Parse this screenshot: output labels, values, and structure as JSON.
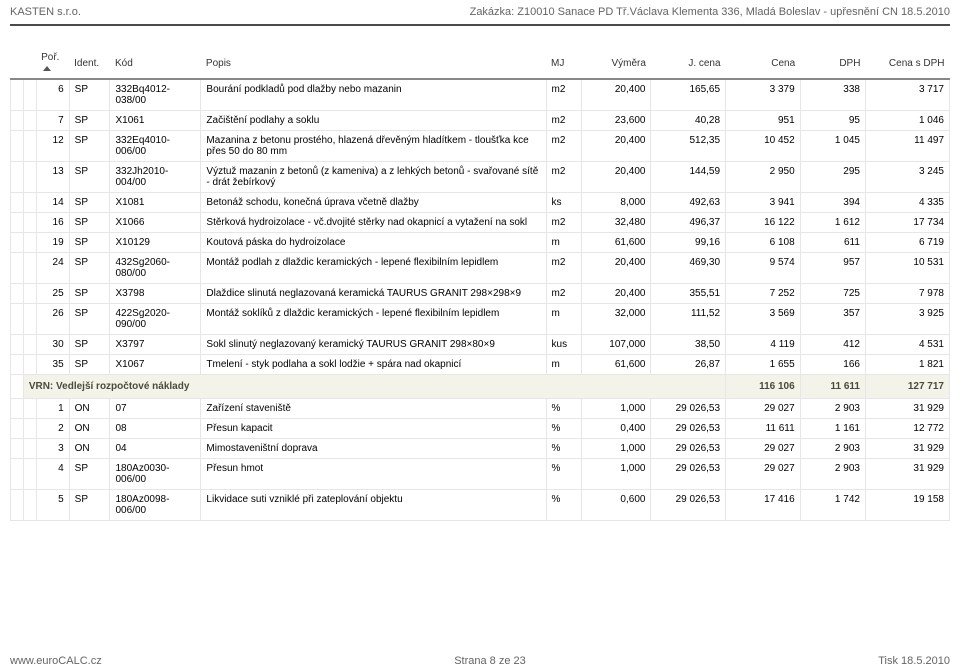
{
  "header": {
    "left": "KASTEN s.r.o.",
    "right": "Zakázka: Z10010 Sanace PD Tř.Václava Klementa 336, Mladá Boleslav - upřesnění CN 18.5.2010"
  },
  "columns": {
    "c1": "Poř.",
    "c2": "Ident.",
    "c3": "Kód",
    "c4": "Popis",
    "c5": "MJ",
    "c6": "Výměra",
    "c7": "J. cena",
    "c8": "Cena",
    "c9": "DPH",
    "c10": "Cena s DPH"
  },
  "rows": [
    {
      "n": "6",
      "ident": "SP",
      "kod": "332Bq4012-038/00",
      "popis": "Bourání podkladů pod dlažby nebo mazanin",
      "mj": "m2",
      "vymera": "20,400",
      "jcena": "165,65",
      "cena": "3 379",
      "dph": "338",
      "sdph": "3 717"
    },
    {
      "n": "7",
      "ident": "SP",
      "kod": "X1061",
      "popis": "Začištění podlahy a soklu",
      "mj": "m2",
      "vymera": "23,600",
      "jcena": "40,28",
      "cena": "951",
      "dph": "95",
      "sdph": "1 046"
    },
    {
      "n": "12",
      "ident": "SP",
      "kod": "332Eq4010-006/00",
      "popis": "Mazanina z betonu prostého, hlazená dřevěným hladítkem - tloušťka kce přes 50 do 80 mm",
      "mj": "m2",
      "vymera": "20,400",
      "jcena": "512,35",
      "cena": "10 452",
      "dph": "1 045",
      "sdph": "11 497"
    },
    {
      "n": "13",
      "ident": "SP",
      "kod": "332Jh2010-004/00",
      "popis": "Výztuž mazanin z betonů (z kameniva) a z lehkých betonů - svařované sítě - drát žebírkový",
      "mj": "m2",
      "vymera": "20,400",
      "jcena": "144,59",
      "cena": "2 950",
      "dph": "295",
      "sdph": "3 245"
    },
    {
      "n": "14",
      "ident": "SP",
      "kod": "X1081",
      "popis": "Betonáž schodu, konečná úprava včetně dlažby",
      "mj": "ks",
      "vymera": "8,000",
      "jcena": "492,63",
      "cena": "3 941",
      "dph": "394",
      "sdph": "4 335"
    },
    {
      "n": "16",
      "ident": "SP",
      "kod": "X1066",
      "popis": "Stěrková hydroizolace - vč.dvojité stěrky nad okapnicí a vytažení na sokl",
      "mj": "m2",
      "vymera": "32,480",
      "jcena": "496,37",
      "cena": "16 122",
      "dph": "1 612",
      "sdph": "17 734"
    },
    {
      "n": "19",
      "ident": "SP",
      "kod": "X10129",
      "popis": "Koutová páska do hydroizolace",
      "mj": "m",
      "vymera": "61,600",
      "jcena": "99,16",
      "cena": "6 108",
      "dph": "611",
      "sdph": "6 719"
    },
    {
      "n": "24",
      "ident": "SP",
      "kod": "432Sg2060-080/00",
      "popis": "Montáž podlah z dlaždic keramických - lepené flexibilním lepidlem",
      "mj": "m2",
      "vymera": "20,400",
      "jcena": "469,30",
      "cena": "9 574",
      "dph": "957",
      "sdph": "10 531"
    },
    {
      "n": "25",
      "ident": "SP",
      "kod": "X3798",
      "popis": "Dlaždice slinutá neglazovaná keramická TAURUS GRANIT 298×298×9",
      "mj": "m2",
      "vymera": "20,400",
      "jcena": "355,51",
      "cena": "7 252",
      "dph": "725",
      "sdph": "7 978"
    },
    {
      "n": "26",
      "ident": "SP",
      "kod": "422Sg2020-090/00",
      "popis": "Montáž soklíků z dlaždic keramických - lepené flexibilním lepidlem",
      "mj": "m",
      "vymera": "32,000",
      "jcena": "111,52",
      "cena": "3 569",
      "dph": "357",
      "sdph": "3 925"
    },
    {
      "n": "30",
      "ident": "SP",
      "kod": "X3797",
      "popis": "Sokl slinutý neglazovaný keramický TAURUS GRANIT 298×80×9",
      "mj": "kus",
      "vymera": "107,000",
      "jcena": "38,50",
      "cena": "4 119",
      "dph": "412",
      "sdph": "4 531"
    },
    {
      "n": "35",
      "ident": "SP",
      "kod": "X1067",
      "popis": "Tmelení - styk podlaha a sokl lodžie + spára nad okapnicí",
      "mj": "m",
      "vymera": "61,600",
      "jcena": "26,87",
      "cena": "1 655",
      "dph": "166",
      "sdph": "1 821"
    }
  ],
  "vrn": {
    "label": "VRN: Vedlejší rozpočtové náklady",
    "cena": "116 106",
    "dph": "11 611",
    "sdph": "127 717"
  },
  "rows2": [
    {
      "n": "1",
      "ident": "ON",
      "kod": "07",
      "popis": "Zařízení staveniště",
      "mj": "%",
      "vymera": "1,000",
      "jcena": "29 026,53",
      "cena": "29 027",
      "dph": "2 903",
      "sdph": "31 929"
    },
    {
      "n": "2",
      "ident": "ON",
      "kod": "08",
      "popis": "Přesun kapacit",
      "mj": "%",
      "vymera": "0,400",
      "jcena": "29 026,53",
      "cena": "11 611",
      "dph": "1 161",
      "sdph": "12 772"
    },
    {
      "n": "3",
      "ident": "ON",
      "kod": "04",
      "popis": "Mimostaveništní doprava",
      "mj": "%",
      "vymera": "1,000",
      "jcena": "29 026,53",
      "cena": "29 027",
      "dph": "2 903",
      "sdph": "31 929"
    },
    {
      "n": "4",
      "ident": "SP",
      "kod": "180Az0030-006/00",
      "popis": "Přesun hmot",
      "mj": "%",
      "vymera": "1,000",
      "jcena": "29 026,53",
      "cena": "29 027",
      "dph": "2 903",
      "sdph": "31 929"
    },
    {
      "n": "5",
      "ident": "SP",
      "kod": "180Az0098-006/00",
      "popis": "Likvidace suti vzniklé při zateplování objektu",
      "mj": "%",
      "vymera": "0,600",
      "jcena": "29 026,53",
      "cena": "17 416",
      "dph": "1 742",
      "sdph": "19 158"
    }
  ],
  "footer": {
    "left": "www.euroCALC.cz",
    "center": "Strana  8 ze 23",
    "right": "Tisk  18.5.2010"
  },
  "style": {
    "text_color": "#333333",
    "muted_color": "#646464",
    "border_color": "#e6e6e6",
    "vrn_bg": "#f4f3e9",
    "vrn_text": "#4a4a3a",
    "header_rule": "#4a4a4a",
    "font_size_body": 10,
    "font_size_header": 11,
    "col_widths": {
      "lvl1": 6,
      "lvl2": 6,
      "n": 28,
      "ident": 32,
      "kod": 78,
      "popis": 296,
      "mj": 30,
      "vymera": 60,
      "jcena": 64,
      "cena": 64,
      "dph": 56,
      "sdph": 72
    }
  }
}
